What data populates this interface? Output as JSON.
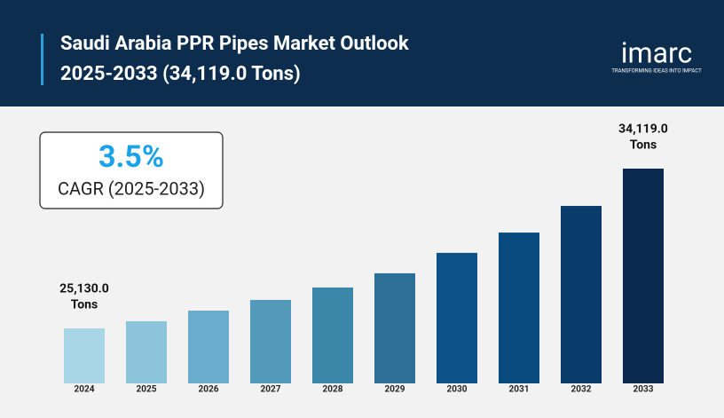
{
  "brand": {
    "name": "imarc",
    "tagline": "TRANSFORMING IDEAS INTO IMPACT"
  },
  "chart_data": {
    "type": "bar",
    "title": "Saudi Arabia PPR Pipes Market Outlook",
    "subtitle": "2025-2033 (34,119.0 Tons)",
    "cagr": {
      "value": "3.5%",
      "label": "CAGR (2025-2033)"
    },
    "categories": [
      "2024",
      "2025",
      "2026",
      "2027",
      "2028",
      "2029",
      "2030",
      "2031",
      "2032",
      "2033"
    ],
    "values": [
      25130.0,
      25530,
      26130,
      26730,
      27430,
      28230,
      29380,
      30520,
      32020,
      34119.0
    ],
    "value_labels": [
      [
        "25,130.0",
        "Tons"
      ],
      null,
      null,
      null,
      null,
      null,
      null,
      null,
      null,
      [
        "34,119.0",
        "Tons"
      ]
    ],
    "colors": [
      "#a8d6e6",
      "#8cc4dc",
      "#6aaccb",
      "#5399b9",
      "#3b87aa",
      "#2e6f98",
      "#0e528a",
      "#084a7e",
      "#0a3c6b",
      "#0a2b4f"
    ]
  }
}
